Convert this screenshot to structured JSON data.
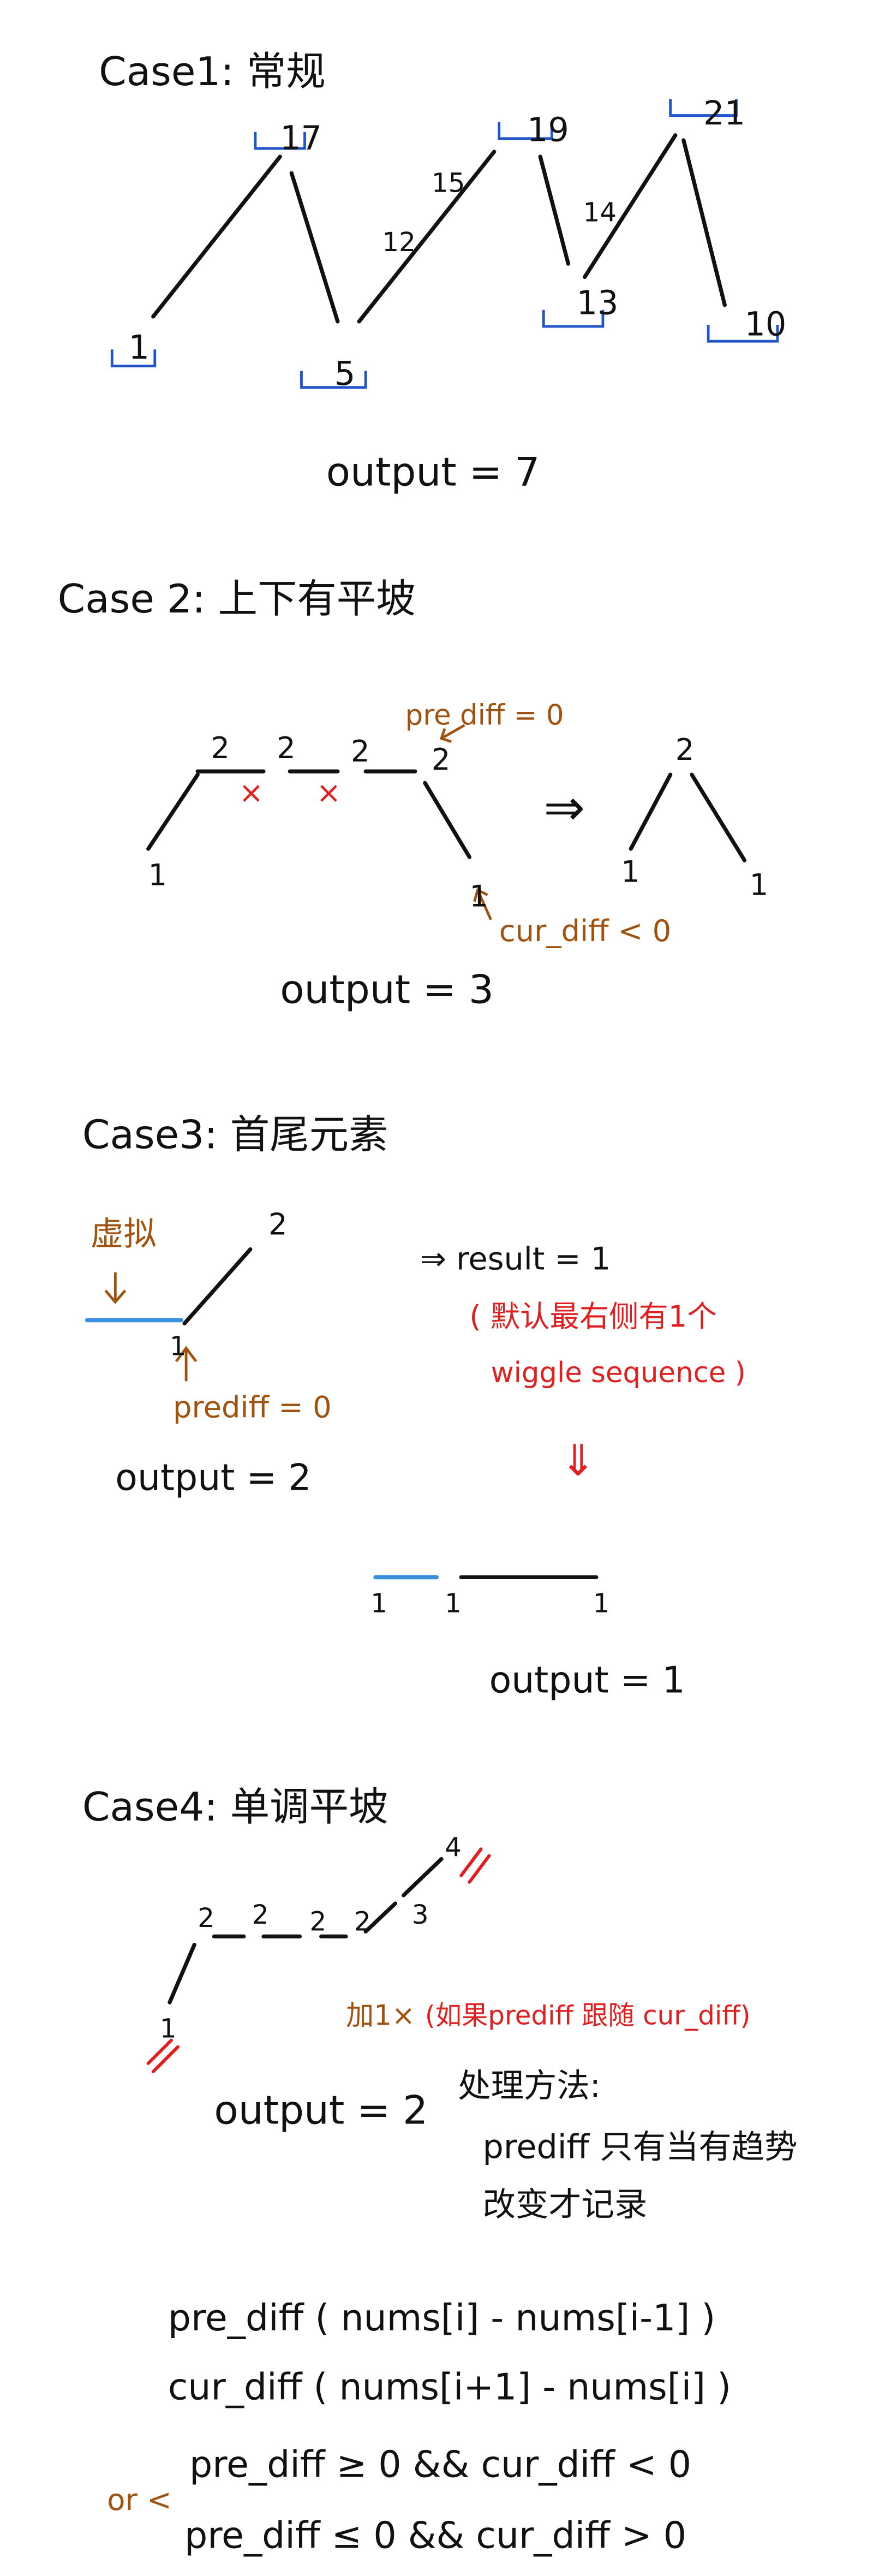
{
  "case1": {
    "title": "Case1: 常规",
    "nodes": [
      "1",
      "17",
      "5",
      "12",
      "15",
      "19",
      "14",
      "13",
      "21",
      "10"
    ],
    "output": "output = 7"
  },
  "case2": {
    "title": "Case 2: 上下有平坡",
    "left_nodes": [
      "2",
      "2",
      "2",
      "2",
      "1",
      "1"
    ],
    "marks": [
      "×",
      "×"
    ],
    "pre_diff": "pre diff = 0",
    "cur_diff": "cur_diff < 0",
    "arrow": "⇒",
    "right_nodes": [
      "2",
      "1",
      "1"
    ],
    "output": "output = 3"
  },
  "case3": {
    "title": "Case3: 首尾元素",
    "virtual": "虚拟",
    "nodes": [
      "2",
      "1"
    ],
    "prediff": "prediff = 0",
    "output": "output = 2",
    "result": "⇒ result = 1",
    "note_lines": [
      "( 默认最右侧有1个",
      "wiggle sequence )"
    ],
    "down_arrow": "⇓",
    "bottom_nodes": [
      "1",
      "1",
      "1"
    ],
    "output2": "output = 1"
  },
  "case4": {
    "title": "Case4: 单调平坡",
    "nodes": [
      "2",
      "2",
      "2",
      "2",
      "3",
      "4",
      "1"
    ],
    "add": "加1×",
    "condition": "(如果prediff 跟随 cur_diff)",
    "output": "output = 2",
    "method_title": "处理方法:",
    "method_lines": [
      "prediff 只有当有趋势",
      "改变才记录"
    ]
  },
  "formulas": {
    "lines": [
      "pre_diff ( nums[i] - nums[i-1] )",
      "cur_diff ( nums[i+1] - nums[i] )",
      "pre_diff ≥ 0 && cur_diff < 0",
      "pre_diff ≤ 0 && cur_diff > 0"
    ],
    "or": "or <"
  }
}
